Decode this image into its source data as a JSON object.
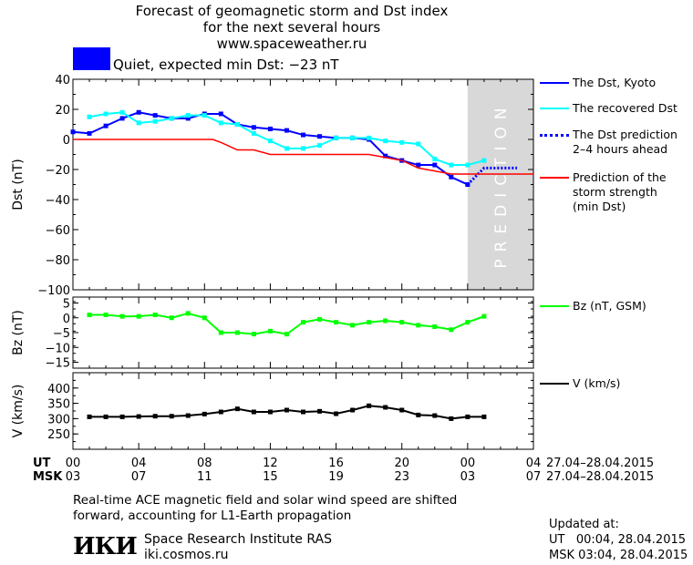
{
  "header": {
    "title_lines": [
      "Forecast of geomagnetic storm and Dst index",
      "for the next several hours",
      "www.spaceweather.ru"
    ]
  },
  "status": {
    "text": "Quiet, expected min Dst: −23 nT",
    "color": "#0000ff"
  },
  "legend": {
    "dst_kyoto": "The Dst, Kyoto",
    "recovered": "The recovered Dst",
    "prediction": "The Dst prediction\n2–4 hours ahead",
    "storm": "Prediction of the\nstorm strength\n(min Dst)",
    "bz": "Bz (nT, GSM)",
    "v": "V (km/s)"
  },
  "axes": {
    "ut_label": "UT",
    "msk_label": "MSK",
    "ut_ticks": [
      "00",
      "04",
      "08",
      "12",
      "16",
      "20",
      "00",
      "04"
    ],
    "msk_ticks": [
      "03",
      "07",
      "11",
      "15",
      "19",
      "23",
      "03",
      "07"
    ],
    "date_range_ut": "27.04–28.04.2015",
    "date_range_msk": "27.04–28.04.2015",
    "prediction_text": "PREDICTION"
  },
  "chart_data": [
    {
      "type": "line",
      "ylabel": "Dst (nT)",
      "ylim": [
        -100,
        40
      ],
      "yticks": [
        40,
        20,
        0,
        -20,
        -40,
        -60,
        -80,
        -100
      ],
      "x_hours_range": [
        0,
        28
      ],
      "series": [
        {
          "name": "The Dst, Kyoto",
          "color": "#0000ff",
          "x": [
            0,
            1,
            2,
            3,
            4,
            5,
            6,
            7,
            8,
            9,
            10,
            11,
            12,
            13,
            14,
            15,
            16,
            17,
            18,
            19,
            20,
            21,
            22,
            23,
            24
          ],
          "y": [
            5,
            4,
            9,
            14,
            18,
            16,
            14,
            14,
            17,
            17,
            10,
            8,
            7,
            6,
            3,
            2,
            1,
            1,
            0,
            -11,
            -14,
            -17,
            -17,
            -25,
            -30
          ]
        },
        {
          "name": "The recovered Dst",
          "color": "#00ffff",
          "x": [
            1,
            2,
            3,
            4,
            5,
            6,
            7,
            8,
            9,
            10,
            11,
            12,
            13,
            14,
            15,
            16,
            17,
            18,
            19,
            20,
            21,
            22,
            23,
            24,
            25
          ],
          "y": [
            15,
            17,
            18,
            11,
            12,
            14,
            16,
            16,
            11,
            10,
            4,
            -1,
            -6,
            -6,
            -4,
            1,
            1,
            1,
            -1,
            -2,
            -3,
            -13,
            -17,
            -17,
            -14
          ]
        },
        {
          "name": "The Dst prediction 2–4 hours ahead",
          "color": "#0000ff",
          "style": "dotted",
          "x": [
            24,
            25,
            26,
            27
          ],
          "y": [
            -30,
            -19,
            -19,
            -19
          ]
        },
        {
          "name": "Prediction of the storm strength (min Dst)",
          "color": "#ff0000",
          "x": [
            0,
            8.5,
            9,
            10,
            11,
            12,
            18,
            19,
            20,
            21,
            22,
            23,
            24,
            28
          ],
          "y": [
            0,
            0,
            -2,
            -7,
            -7,
            -10,
            -10,
            -12,
            -14,
            -19,
            -21,
            -23,
            -23,
            -23
          ]
        }
      ]
    },
    {
      "type": "line",
      "ylabel": "Bz (nT)",
      "ylim": [
        -17,
        7
      ],
      "yticks": [
        5,
        0,
        -5,
        -10,
        -15
      ],
      "series": [
        {
          "name": "Bz (nT, GSM)",
          "color": "#00ff00",
          "x": [
            1,
            2,
            3,
            4,
            5,
            6,
            7,
            8,
            9,
            10,
            11,
            12,
            13,
            14,
            15,
            16,
            17,
            18,
            19,
            20,
            21,
            22,
            23,
            24,
            25
          ],
          "y": [
            1,
            1,
            0.5,
            0.5,
            1,
            0,
            1.5,
            0,
            -5,
            -5,
            -5.5,
            -4.5,
            -5.5,
            -1.5,
            -0.5,
            -1.5,
            -2.5,
            -1.5,
            -1,
            -1.5,
            -2.5,
            -3,
            -4,
            -1.5,
            0.5
          ]
        }
      ]
    },
    {
      "type": "line",
      "ylabel": "V (km/s)",
      "ylim": [
        200,
        450
      ],
      "yticks": [
        400,
        350,
        300,
        250
      ],
      "series": [
        {
          "name": "V (km/s)",
          "color": "#000000",
          "x": [
            1,
            2,
            3,
            4,
            5,
            6,
            7,
            8,
            9,
            10,
            11,
            12,
            13,
            14,
            15,
            16,
            17,
            18,
            19,
            20,
            21,
            22,
            23,
            24,
            25
          ],
          "y": [
            306,
            306,
            306,
            307,
            308,
            308,
            310,
            315,
            322,
            332,
            322,
            322,
            328,
            322,
            324,
            316,
            328,
            342,
            337,
            328,
            312,
            310,
            300,
            306,
            306
          ]
        }
      ]
    }
  ],
  "footer": {
    "note_line1": "Real-time ACE magnetic field and solar wind speed are shifted",
    "note_line2": "forward, accounting for L1-Earth propagation",
    "logo": "ИКИ",
    "institute": "Space Research Institute RAS",
    "site": "iki.cosmos.ru",
    "updated_label": "Updated at:",
    "updated_ut": "UT   00:04, 28.04.2015",
    "updated_msk": "MSK 03:04, 28.04.2015"
  }
}
